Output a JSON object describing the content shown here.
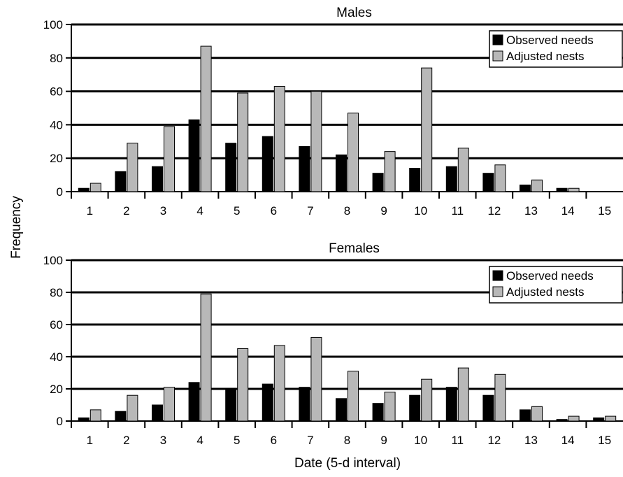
{
  "figure": {
    "ylabel": "Frequency",
    "xlabel": "Date (5-d interval)"
  },
  "colors": {
    "observed": "#000000",
    "adjusted": "#b8b8b8",
    "frame": "#000000"
  },
  "chart_data": [
    {
      "type": "bar",
      "title": "Males",
      "categories": [
        "1",
        "2",
        "3",
        "4",
        "5",
        "6",
        "7",
        "8",
        "9",
        "10",
        "11",
        "12",
        "13",
        "14",
        "15"
      ],
      "ylim": [
        0,
        100
      ],
      "yticks": [
        "0",
        "20",
        "40",
        "60",
        "80",
        "100"
      ],
      "grid": true,
      "legend_position": "top-right",
      "series": [
        {
          "name": "Observed needs",
          "values": [
            2,
            12,
            15,
            43,
            29,
            33,
            27,
            22,
            11,
            14,
            15,
            11,
            4,
            2,
            0
          ]
        },
        {
          "name": "Adjusted nests",
          "values": [
            5,
            29,
            39,
            87,
            59,
            63,
            60,
            47,
            24,
            74,
            26,
            16,
            7,
            2,
            0
          ]
        }
      ]
    },
    {
      "type": "bar",
      "title": "Females",
      "categories": [
        "1",
        "2",
        "3",
        "4",
        "5",
        "6",
        "7",
        "8",
        "9",
        "10",
        "11",
        "12",
        "13",
        "14",
        "15"
      ],
      "ylim": [
        0,
        100
      ],
      "yticks": [
        "0",
        "20",
        "40",
        "60",
        "80",
        "100"
      ],
      "grid": true,
      "legend_position": "top-right",
      "series": [
        {
          "name": "Observed needs",
          "values": [
            2,
            6,
            10,
            24,
            20,
            23,
            21,
            14,
            11,
            16,
            21,
            16,
            7,
            1,
            2
          ]
        },
        {
          "name": "Adjusted nests",
          "values": [
            7,
            16,
            21,
            79,
            45,
            47,
            52,
            31,
            18,
            26,
            33,
            29,
            9,
            3,
            3
          ]
        }
      ]
    }
  ]
}
